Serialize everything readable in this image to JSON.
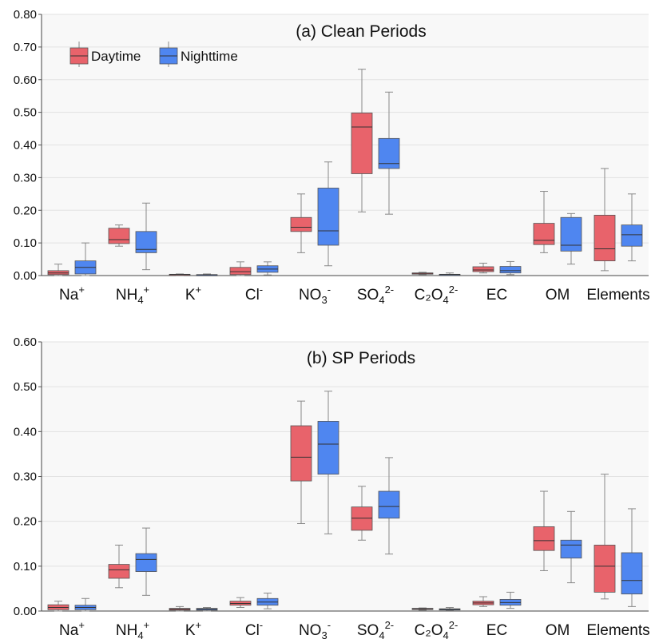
{
  "chart_data": [
    {
      "type": "box",
      "title": "(a) Clean Periods",
      "ylim": [
        0,
        0.8
      ],
      "yticks": [
        "0.00",
        "0.10",
        "0.20",
        "0.30",
        "0.40",
        "0.50",
        "0.60",
        "0.70",
        "0.80"
      ],
      "grid": "horizontal",
      "legend_position": "top-left",
      "categories": [
        {
          "base": "Na",
          "sub": "",
          "sup": "+"
        },
        {
          "base": "NH",
          "sub": "4",
          "sup": "+"
        },
        {
          "base": "K",
          "sub": "",
          "sup": "+"
        },
        {
          "base": "Cl",
          "sub": "",
          "sup": "-"
        },
        {
          "base": "NO",
          "sub": "3",
          "sup": "-"
        },
        {
          "base": "SO",
          "sub": "4",
          "sup": "2-"
        },
        {
          "base": "C₂O",
          "sub": "4",
          "sup": "2-"
        },
        {
          "base": "EC",
          "sub": "",
          "sup": ""
        },
        {
          "base": "OM",
          "sub": "",
          "sup": ""
        },
        {
          "base": "Elements",
          "sub": "",
          "sup": ""
        }
      ],
      "series": [
        {
          "name": "Daytime",
          "color": "#e8636b",
          "stats": [
            [
              0.0,
              0.003,
              0.008,
              0.015,
              0.035
            ],
            [
              0.09,
              0.098,
              0.11,
              0.145,
              0.155
            ],
            [
              0.0,
              0.001,
              0.003,
              0.004,
              0.005
            ],
            [
              0.0,
              0.003,
              0.012,
              0.025,
              0.042
            ],
            [
              0.07,
              0.135,
              0.148,
              0.178,
              0.25
            ],
            [
              0.195,
              0.312,
              0.455,
              0.498,
              0.632
            ],
            [
              0.003,
              0.005,
              0.007,
              0.008,
              0.01
            ],
            [
              0.008,
              0.012,
              0.017,
              0.027,
              0.038
            ],
            [
              0.07,
              0.095,
              0.108,
              0.16,
              0.258
            ],
            [
              0.015,
              0.045,
              0.082,
              0.185,
              0.328
            ]
          ]
        },
        {
          "name": "Nighttime",
          "color": "#4f86f0",
          "stats": [
            [
              0.0,
              0.005,
              0.025,
              0.045,
              0.1
            ],
            [
              0.018,
              0.07,
              0.08,
              0.135,
              0.222
            ],
            [
              0.0,
              0.001,
              0.002,
              0.003,
              0.005
            ],
            [
              0.002,
              0.01,
              0.02,
              0.03,
              0.042
            ],
            [
              0.03,
              0.093,
              0.137,
              0.268,
              0.348
            ],
            [
              0.188,
              0.328,
              0.343,
              0.42,
              0.562
            ],
            [
              0.001,
              0.002,
              0.003,
              0.004,
              0.008
            ],
            [
              0.003,
              0.008,
              0.015,
              0.028,
              0.043
            ],
            [
              0.035,
              0.075,
              0.093,
              0.178,
              0.19
            ],
            [
              0.045,
              0.09,
              0.125,
              0.155,
              0.25
            ]
          ]
        }
      ]
    },
    {
      "type": "box",
      "title": "(b) SP Periods",
      "ylim": [
        0,
        0.6
      ],
      "yticks": [
        "0.00",
        "0.10",
        "0.20",
        "0.30",
        "0.40",
        "0.50",
        "0.60"
      ],
      "grid": "horizontal",
      "categories": [
        {
          "base": "Na",
          "sub": "",
          "sup": "+"
        },
        {
          "base": "NH",
          "sub": "4",
          "sup": "+"
        },
        {
          "base": "K",
          "sub": "",
          "sup": "+"
        },
        {
          "base": "Cl",
          "sub": "",
          "sup": "-"
        },
        {
          "base": "NO",
          "sub": "3",
          "sup": "-"
        },
        {
          "base": "SO",
          "sub": "4",
          "sup": "2-"
        },
        {
          "base": "C₂O",
          "sub": "4",
          "sup": "2-"
        },
        {
          "base": "EC",
          "sub": "",
          "sup": ""
        },
        {
          "base": "OM",
          "sub": "",
          "sup": ""
        },
        {
          "base": "Elements",
          "sub": "",
          "sup": ""
        }
      ],
      "series": [
        {
          "name": "Daytime",
          "color": "#e8636b",
          "stats": [
            [
              0.0,
              0.003,
              0.008,
              0.014,
              0.022
            ],
            [
              0.052,
              0.073,
              0.092,
              0.104,
              0.147
            ],
            [
              0.0,
              0.002,
              0.004,
              0.006,
              0.01
            ],
            [
              0.008,
              0.013,
              0.017,
              0.022,
              0.03
            ],
            [
              0.195,
              0.29,
              0.343,
              0.413,
              0.468
            ],
            [
              0.158,
              0.18,
              0.207,
              0.232,
              0.278
            ],
            [
              0.002,
              0.004,
              0.005,
              0.006,
              0.007
            ],
            [
              0.01,
              0.014,
              0.018,
              0.022,
              0.032
            ],
            [
              0.09,
              0.135,
              0.157,
              0.188,
              0.267
            ],
            [
              0.027,
              0.042,
              0.1,
              0.147,
              0.305
            ]
          ]
        },
        {
          "name": "Nighttime",
          "color": "#4f86f0",
          "stats": [
            [
              0.0,
              0.003,
              0.008,
              0.013,
              0.028
            ],
            [
              0.035,
              0.088,
              0.115,
              0.128,
              0.185
            ],
            [
              0.0,
              0.002,
              0.004,
              0.006,
              0.008
            ],
            [
              0.005,
              0.013,
              0.02,
              0.028,
              0.04
            ],
            [
              0.172,
              0.305,
              0.372,
              0.423,
              0.49
            ],
            [
              0.127,
              0.207,
              0.233,
              0.267,
              0.342
            ],
            [
              0.002,
              0.003,
              0.004,
              0.005,
              0.008
            ],
            [
              0.006,
              0.013,
              0.019,
              0.026,
              0.042
            ],
            [
              0.063,
              0.118,
              0.147,
              0.158,
              0.222
            ],
            [
              0.01,
              0.038,
              0.068,
              0.13,
              0.228
            ]
          ]
        }
      ]
    }
  ]
}
